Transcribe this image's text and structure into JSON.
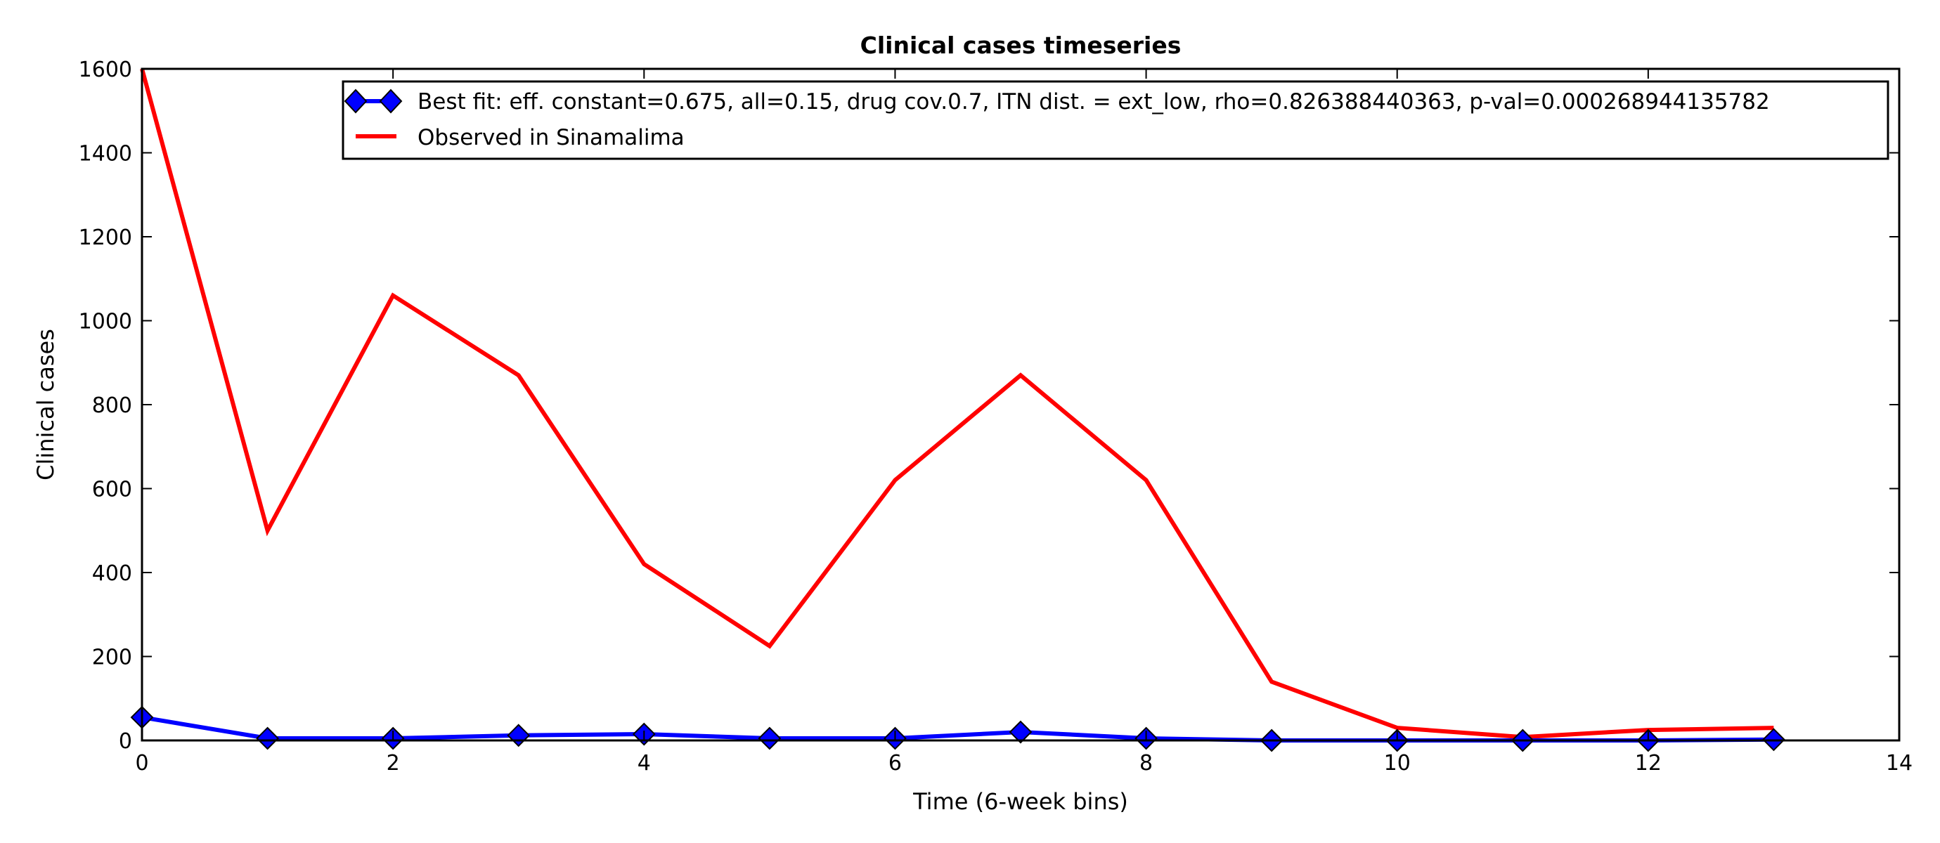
{
  "chart_data": {
    "type": "line",
    "title": "Clinical cases timeseries",
    "xlabel": "Time (6-week bins)",
    "ylabel": "Clinical cases",
    "xlim": [
      0,
      14
    ],
    "ylim": [
      0,
      1600
    ],
    "xticks": [
      0,
      2,
      4,
      6,
      8,
      10,
      12,
      14
    ],
    "yticks": [
      0,
      200,
      400,
      600,
      800,
      1000,
      1200,
      1400,
      1600
    ],
    "grid": false,
    "legend_position": "top-right",
    "x": [
      0,
      1,
      2,
      3,
      4,
      5,
      6,
      7,
      8,
      9,
      10,
      11,
      12,
      13
    ],
    "series": [
      {
        "name": "Best fit: eff. constant=0.675, all=0.15, drug cov.0.7, ITN dist. = ext_low, rho=0.826388440363, p-val=0.000268944135782",
        "color": "#0000ff",
        "marker": "diamond",
        "values": [
          55,
          5,
          5,
          12,
          15,
          5,
          5,
          20,
          5,
          0,
          0,
          0,
          0,
          2
        ]
      },
      {
        "name": "Observed in Sinamalima",
        "color": "#ff0000",
        "marker": "none",
        "values": [
          1600,
          500,
          1060,
          870,
          420,
          225,
          620,
          870,
          620,
          140,
          30,
          8,
          25,
          30
        ]
      }
    ]
  }
}
